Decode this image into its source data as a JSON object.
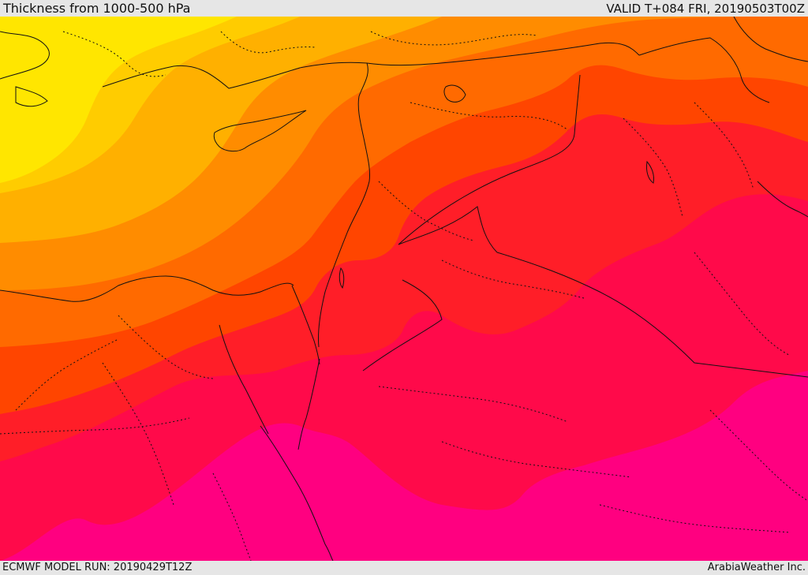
{
  "header": {
    "title": "Thickness from 1000-500 hPa",
    "valid": "VALID T+084 FRI, 20190503T00Z"
  },
  "footer": {
    "model_run": "ECMWF MODEL RUN: 20190429T12Z",
    "credit": "ArabiaWeather Inc."
  },
  "palette": {
    "band1": "#ffe600",
    "band2": "#ffcc00",
    "band3": "#ffb000",
    "band4": "#ff8c00",
    "band5": "#ff6a00",
    "band6": "#ff4500",
    "band7": "#ff1e28",
    "band8": "#ff0a4a",
    "band9": "#ff0080",
    "band10": "#ff00c0",
    "borders": "#111111"
  }
}
